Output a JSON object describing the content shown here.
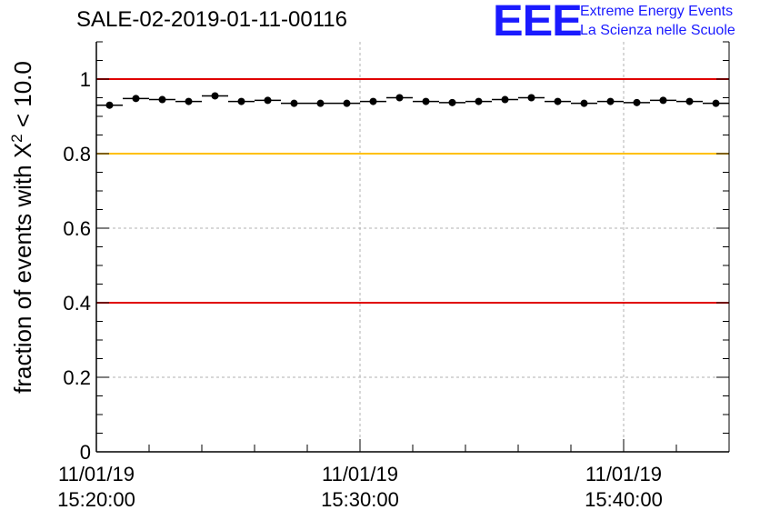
{
  "chart_data": {
    "type": "scatter",
    "title": "SALE-02-2019-01-11-00116",
    "ylabel_main": "fraction of events with X",
    "ylabel_sup": "2",
    "ylabel_tail": " < 10.0",
    "ylim": [
      0,
      1.1
    ],
    "yticks": [
      0,
      0.2,
      0.4,
      0.6,
      0.8,
      1
    ],
    "ytick_labels": [
      "0",
      "0.2",
      "0.4",
      "0.6",
      "0.8",
      "1"
    ],
    "xlim_minutes": [
      0,
      24
    ],
    "xticks": [
      {
        "minute": 0,
        "date": "11/01/19",
        "time": "15:20:00"
      },
      {
        "minute": 10,
        "date": "11/01/19",
        "time": "15:30:00"
      },
      {
        "minute": 20,
        "date": "11/01/19",
        "time": "15:40:00"
      }
    ],
    "grid": true,
    "reference_lines": [
      {
        "y": 1.0,
        "color": "#e00000"
      },
      {
        "y": 0.8,
        "color": "#ffc000"
      },
      {
        "y": 0.4,
        "color": "#e00000"
      }
    ],
    "bin_width_minutes": 1,
    "series": [
      {
        "x_minutes": [
          0.5,
          1.5,
          2.5,
          3.5,
          4.5,
          5.5,
          6.5,
          7.5,
          8.5,
          9.5,
          10.5,
          11.5,
          12.5,
          13.5,
          14.5,
          15.5,
          16.5,
          17.5,
          18.5,
          19.5,
          20.5,
          21.5,
          22.5,
          23.5
        ],
        "values": [
          0.93,
          0.948,
          0.945,
          0.94,
          0.955,
          0.94,
          0.943,
          0.935,
          0.935,
          0.935,
          0.94,
          0.95,
          0.94,
          0.937,
          0.94,
          0.945,
          0.95,
          0.94,
          0.935,
          0.94,
          0.937,
          0.943,
          0.94,
          0.935
        ]
      }
    ]
  },
  "logo": {
    "mark": "EEE",
    "line1": "Extreme Energy Events",
    "line2": "La Scienza nelle Scuole"
  }
}
